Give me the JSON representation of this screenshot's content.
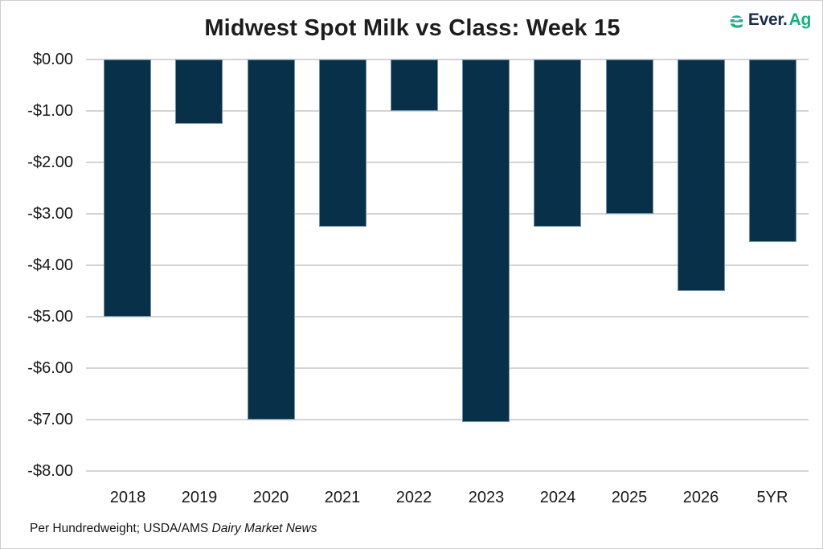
{
  "logo": {
    "icon": "ever-ag-e-icon",
    "text_primary": "Ever.",
    "text_secondary": "Ag",
    "color_primary": "#1d2d4e",
    "color_secondary": "#12b17c",
    "icon_color_top": "#2bb5ad",
    "icon_color_bottom": "#12b16c"
  },
  "footnote": {
    "prefix": "Per Hundredweight; USDA/AMS ",
    "italic": "Dairy Market News"
  },
  "colors": {
    "bar": "#083048",
    "bar_stroke": "#6e91a5",
    "gridline": "#d4d4d4",
    "text": "#191919"
  },
  "chart_data": {
    "type": "bar",
    "title": "Midwest Spot Milk vs Class: Week 15",
    "categories": [
      "2018",
      "2019",
      "2020",
      "2021",
      "2022",
      "2023",
      "2024",
      "2025",
      "2026",
      "5YR"
    ],
    "values": [
      -5.0,
      -1.25,
      -7.0,
      -3.25,
      -1.0,
      -7.05,
      -3.25,
      -3.0,
      -4.5,
      -3.55
    ],
    "xlabel": "",
    "ylabel": "",
    "ylim": [
      -8,
      0
    ],
    "ytick_step": 1.0,
    "ytick_labels": [
      "$0.00",
      "-$1.00",
      "-$2.00",
      "-$3.00",
      "-$4.00",
      "-$5.00",
      "-$6.00",
      "-$7.00",
      "-$8.00"
    ],
    "grid": true,
    "legend": false,
    "units_note": "Per Hundredweight; USDA/AMS Dairy Market News"
  }
}
